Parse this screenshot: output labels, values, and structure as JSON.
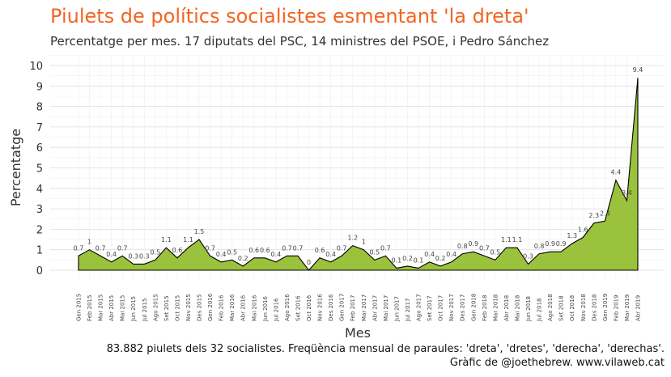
{
  "chart_data": {
    "type": "area",
    "title": "Piulets de polítics socialistes esmentant 'la dreta'",
    "subtitle": "Percentatge per mes. 17 diputats del PSC, 14 ministres del PSOE, i Pedro Sánchez",
    "xlabel": "Mes",
    "ylabel": "Percentatge",
    "ylim": [
      0,
      10.5
    ],
    "yticks": [
      0,
      1,
      2,
      3,
      4,
      5,
      6,
      7,
      8,
      9,
      10
    ],
    "grid": true,
    "fill_color": "#9ac23c",
    "line_color": "#000000",
    "title_color": "#f26522",
    "categories": [
      "Gen 2015",
      "Feb 2015",
      "Mar 2015",
      "Abr 2015",
      "Mai 2015",
      "Jun 2015",
      "Jul 2015",
      "Ago 2015",
      "Set 2015",
      "Oct 2015",
      "Nov 2015",
      "Des 2015",
      "Gen 2016",
      "Feb 2016",
      "Mar 2016",
      "Abr 2016",
      "Mai 2016",
      "Jun 2016",
      "Jul 2016",
      "Ago 2016",
      "Set 2016",
      "Oct 2016",
      "Nov 2016",
      "Des 2016",
      "Gen 2017",
      "Feb 2017",
      "Mar 2017",
      "Abr 2017",
      "Mai 2017",
      "Jun 2017",
      "Jul 2017",
      "Ago 2017",
      "Set 2017",
      "Oct 2017",
      "Nov 2017",
      "Des 2017",
      "Gen 2018",
      "Feb 2018",
      "Mar 2018",
      "Abr 2018",
      "Mai 2018",
      "Jun 2018",
      "Jul 2018",
      "Ago 2018",
      "Set 2018",
      "Oct 2018",
      "Nov 2018",
      "Des 2018",
      "Gen 2019",
      "Feb 2019",
      "Mar 2019",
      "Abr 2019"
    ],
    "values": [
      0.7,
      1,
      0.7,
      0.4,
      0.7,
      0.3,
      0.3,
      0.5,
      1.1,
      0.6,
      1.1,
      1.5,
      0.7,
      0.4,
      0.5,
      0.2,
      0.6,
      0.6,
      0.4,
      0.7,
      0.7,
      0,
      0.6,
      0.4,
      0.7,
      1.2,
      1,
      0.5,
      0.7,
      0.1,
      0.2,
      0.1,
      0.4,
      0.2,
      0.4,
      0.8,
      0.9,
      0.7,
      0.5,
      1.1,
      1.1,
      0.3,
      0.8,
      0.9,
      0.9,
      1.3,
      1.6,
      2.3,
      2.4,
      4.4,
      3.4,
      9.4
    ]
  },
  "caption": {
    "line1": "83.882 piulets dels 32 socialistes. Freqüència mensual de paraules: 'dreta', 'dretes', 'derecha', 'derechas'.",
    "line2": "Gràfic de @joethebrew. www.vilaweb.cat"
  }
}
